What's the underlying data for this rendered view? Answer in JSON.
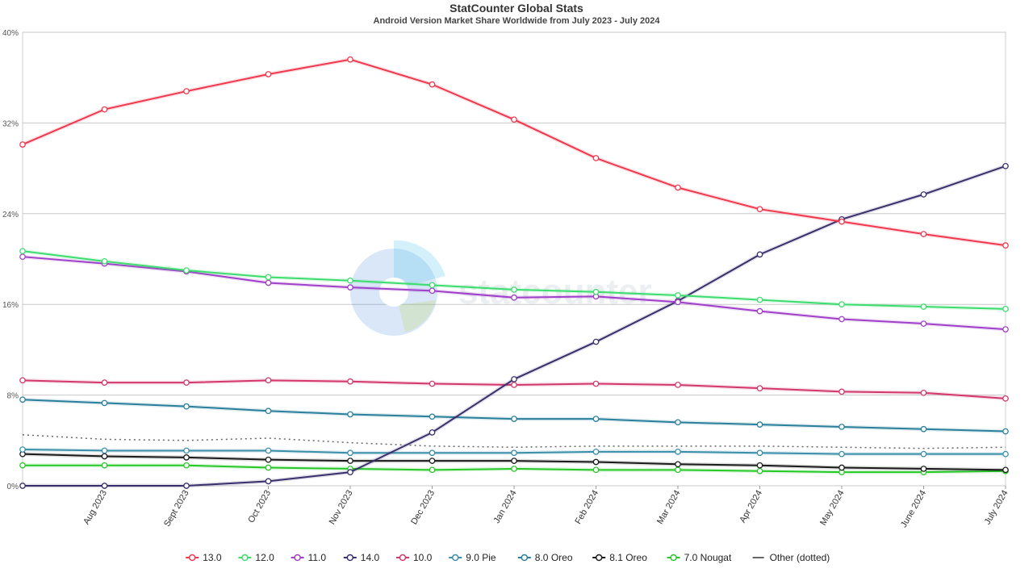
{
  "chart_data": {
    "type": "line",
    "title": "StatCounter Global Stats",
    "subtitle": "Android Version Market Share Worldwide from July 2023 - July 2024",
    "watermark": "statcounter",
    "x": [
      "July 2023",
      "Aug 2023",
      "Sept 2023",
      "Oct 2023",
      "Nov 2023",
      "Dec 2023",
      "Jan 2024",
      "Feb 2024",
      "Mar 2024",
      "Apr 2024",
      "May 2024",
      "June 2024",
      "July 2024"
    ],
    "x_tick_labels": [
      "Aug 2023",
      "Sept 2023",
      "Oct 2023",
      "Nov 2023",
      "Dec 2023",
      "Jan 2024",
      "Feb 2024",
      "Mar 2024",
      "Apr 2024",
      "May 2024",
      "June 2024",
      "July 2024"
    ],
    "y_ticks": [
      "0%",
      "8%",
      "16%",
      "24%",
      "32%",
      "40%"
    ],
    "ylim": [
      0,
      40
    ],
    "grid": true,
    "legend_position": "bottom",
    "series": [
      {
        "name": "13.0",
        "color": "#f0384e",
        "values": [
          30.1,
          33.2,
          34.8,
          36.3,
          37.6,
          35.4,
          32.3,
          28.9,
          26.3,
          24.4,
          23.3,
          22.2,
          21.2
        ]
      },
      {
        "name": "12.0",
        "color": "#3ddc6e",
        "values": [
          20.7,
          19.8,
          19.0,
          18.4,
          18.1,
          17.7,
          17.3,
          17.1,
          16.8,
          16.4,
          16.0,
          15.8,
          15.6
        ]
      },
      {
        "name": "11.0",
        "color": "#a040c8",
        "values": [
          20.2,
          19.6,
          18.9,
          17.9,
          17.5,
          17.2,
          16.6,
          16.7,
          16.2,
          15.4,
          14.7,
          14.3,
          13.8
        ]
      },
      {
        "name": "14.0",
        "color": "#3a2f6b",
        "values": [
          0.0,
          0.0,
          0.0,
          0.4,
          1.2,
          4.7,
          9.4,
          12.7,
          16.3,
          20.4,
          23.5,
          25.7,
          28.2
        ]
      },
      {
        "name": "10.0",
        "color": "#d2386c",
        "values": [
          9.3,
          9.1,
          9.1,
          9.3,
          9.2,
          9.0,
          8.9,
          9.0,
          8.9,
          8.6,
          8.3,
          8.2,
          7.7
        ]
      },
      {
        "name": "9.0 Pie",
        "color": "#3a8fa8",
        "values": [
          3.2,
          3.1,
          3.1,
          3.1,
          2.9,
          2.9,
          2.9,
          3.0,
          3.0,
          2.9,
          2.8,
          2.8,
          2.8
        ]
      },
      {
        "name": "8.0 Oreo",
        "color": "#2a7f9a",
        "values": [
          7.6,
          7.3,
          7.0,
          6.6,
          6.3,
          6.1,
          5.9,
          5.9,
          5.6,
          5.4,
          5.2,
          5.0,
          4.8
        ]
      },
      {
        "name": "8.1 Oreo",
        "color": "#1a1a1a",
        "values": [
          2.8,
          2.6,
          2.5,
          2.3,
          2.2,
          2.2,
          2.2,
          2.1,
          1.9,
          1.8,
          1.6,
          1.5,
          1.4
        ]
      },
      {
        "name": "7.0 Nougat",
        "color": "#26c826",
        "values": [
          1.8,
          1.8,
          1.8,
          1.6,
          1.5,
          1.4,
          1.5,
          1.4,
          1.4,
          1.3,
          1.2,
          1.2,
          1.3
        ]
      },
      {
        "name": "Other (dotted)",
        "color": "#666666",
        "dotted": true,
        "values": [
          4.5,
          4.1,
          4.0,
          4.2,
          3.8,
          3.5,
          3.4,
          3.5,
          3.5,
          3.5,
          3.4,
          3.3,
          3.4
        ]
      }
    ]
  }
}
